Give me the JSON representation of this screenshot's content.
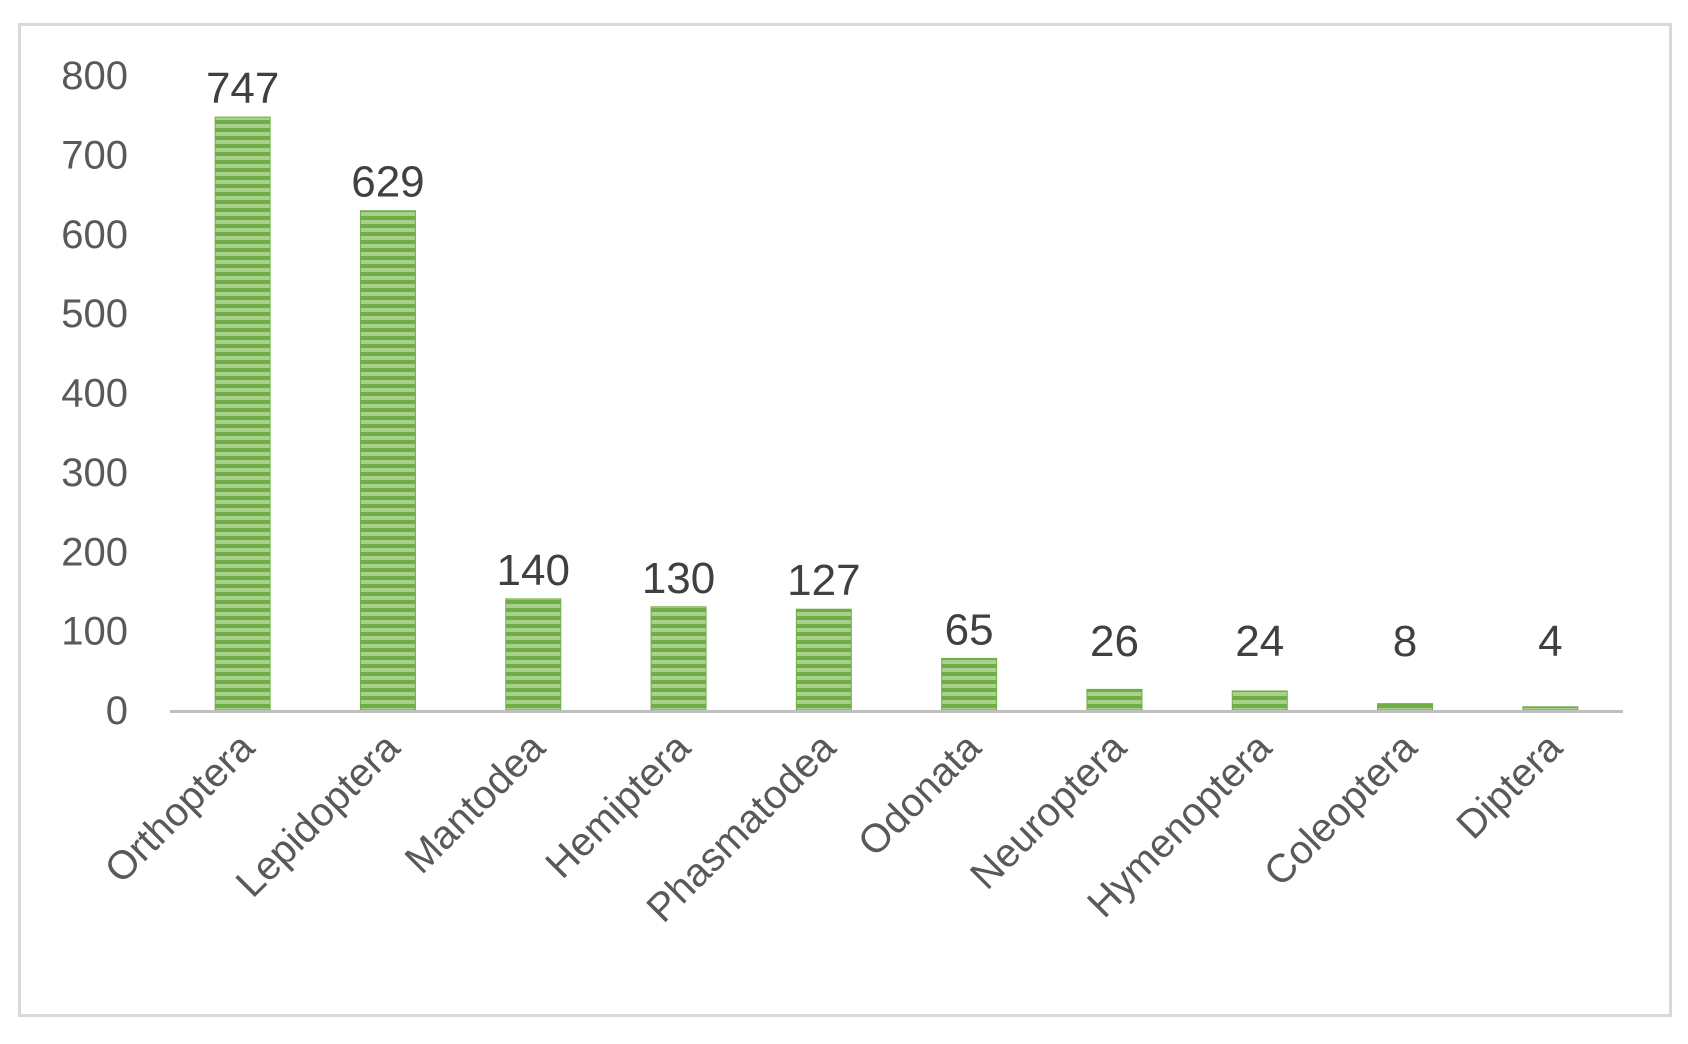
{
  "chart_data": {
    "type": "bar",
    "title": "",
    "xlabel": "",
    "ylabel": "",
    "categories": [
      "Orthoptera",
      "Lepidoptera",
      "Mantodea",
      "Hemiptera",
      "Phasmatodea",
      "Odonata",
      "Neuroptera",
      "Hymenoptera",
      "Coleoptera",
      "Diptera"
    ],
    "values": [
      747,
      629,
      140,
      130,
      127,
      65,
      26,
      24,
      8,
      4
    ],
    "ylim": [
      0,
      800
    ],
    "yticks": [
      "0",
      "100",
      "200",
      "300",
      "400",
      "500",
      "600",
      "700",
      "800"
    ],
    "grid": false,
    "legend": "none",
    "bar_color": "#70ad47",
    "bar_pattern": "horizontal-stripes",
    "axis_color": "#bfbfbf",
    "frame_color": "#d9d9d9"
  }
}
